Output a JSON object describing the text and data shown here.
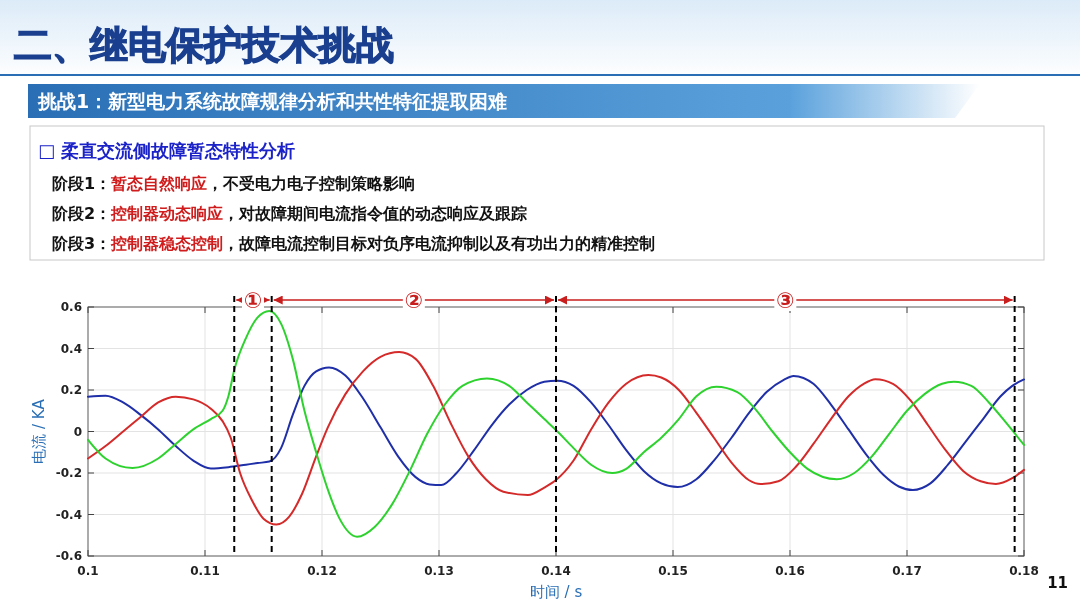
{
  "chart_data": {
    "type": "line",
    "title": "二、继电保护技术挑战",
    "subtitle": "挑战1：新型电力系统故障规律分析和共性特征提取困难",
    "xlabel": "时间 / s",
    "ylabel": "电流 / KA",
    "xlim": [
      0.1,
      0.18
    ],
    "xticks": [
      0.1,
      0.11,
      0.12,
      0.13,
      0.14,
      0.15,
      0.16,
      0.17,
      0.18
    ],
    "ylim": [
      -0.6,
      0.6
    ],
    "yticks": [
      -0.6,
      -0.4,
      -0.2,
      0,
      0.2,
      0.4,
      0.6
    ],
    "grid": true,
    "line_style": "solid",
    "marker": "none",
    "ref_lines": [
      {
        "axis": "x",
        "value": 0.1125,
        "color": "#000000",
        "line_style": "dashed"
      },
      {
        "axis": "x",
        "value": 0.1157,
        "color": "#000000",
        "line_style": "dashed"
      },
      {
        "axis": "x",
        "value": 0.14,
        "color": "#000000",
        "line_style": "dashed"
      },
      {
        "axis": "x",
        "value": 0.1792,
        "color": "#000000",
        "line_style": "dashed"
      }
    ],
    "annotations": [
      "□ 柔直交流侧故障暂态特性分析",
      "阶段1：",
      "暂态自然响应",
      "，不受电力电子控制策略影响",
      "阶段2：",
      "控制器动态响应",
      "，对故障期间电流指令值的动态响应及跟踪",
      "阶段3：",
      "控制器稳态控制",
      "，故障电流控制目标对负序电流抑制以及有功出力的精准控制",
      "①",
      "②",
      "③",
      "11"
    ],
    "series": [
      {
        "color": "#1f2fa8",
        "x": [
          0.1,
          0.1015,
          0.103,
          0.1045,
          0.106,
          0.1075,
          0.109,
          0.1105,
          0.112,
          0.1135,
          0.1145,
          0.1155,
          0.1165,
          0.1175,
          0.1185,
          0.1195,
          0.1206,
          0.122,
          0.1235,
          0.125,
          0.1265,
          0.128,
          0.1292,
          0.1302,
          0.1315,
          0.133,
          0.1345,
          0.136,
          0.1375,
          0.139,
          0.1401,
          0.1415,
          0.143,
          0.1445,
          0.146,
          0.1475,
          0.149,
          0.1504,
          0.152,
          0.1535,
          0.155,
          0.1565,
          0.158,
          0.1595,
          0.1603,
          0.162,
          0.1635,
          0.165,
          0.1665,
          0.168,
          0.1693,
          0.1705,
          0.172,
          0.1735,
          0.175,
          0.1765,
          0.178,
          0.179,
          0.18
        ],
        "values": [
          0.168,
          0.172,
          0.14,
          0.08,
          0.01,
          -0.07,
          -0.14,
          -0.178,
          -0.172,
          -0.16,
          -0.152,
          -0.145,
          -0.08,
          0.08,
          0.22,
          0.29,
          0.309,
          0.27,
          0.16,
          0.02,
          -0.12,
          -0.22,
          -0.255,
          -0.258,
          -0.2,
          -0.09,
          0.03,
          0.13,
          0.2,
          0.24,
          0.245,
          0.22,
          0.14,
          0.03,
          -0.09,
          -0.19,
          -0.25,
          -0.268,
          -0.23,
          -0.14,
          -0.03,
          0.09,
          0.19,
          0.25,
          0.268,
          0.23,
          0.13,
          0.01,
          -0.11,
          -0.21,
          -0.265,
          -0.282,
          -0.25,
          -0.16,
          -0.05,
          0.06,
          0.17,
          0.22,
          0.251
        ]
      },
      {
        "color": "#d42a2a",
        "x": [
          0.1,
          0.1015,
          0.103,
          0.1045,
          0.106,
          0.1075,
          0.109,
          0.1105,
          0.1115,
          0.1122,
          0.113,
          0.114,
          0.115,
          0.1161,
          0.1172,
          0.1183,
          0.1195,
          0.1205,
          0.122,
          0.1235,
          0.125,
          0.1266,
          0.128,
          0.1295,
          0.131,
          0.1325,
          0.134,
          0.1355,
          0.1376,
          0.139,
          0.14,
          0.1415,
          0.143,
          0.1445,
          0.146,
          0.1479,
          0.149,
          0.1505,
          0.152,
          0.1535,
          0.155,
          0.1565,
          0.1575,
          0.159,
          0.1605,
          0.162,
          0.1635,
          0.165,
          0.1663,
          0.1673,
          0.1688,
          0.1703,
          0.1718,
          0.1733,
          0.1748,
          0.1763,
          0.1776,
          0.179,
          0.18
        ],
        "values": [
          -0.13,
          -0.07,
          0.0,
          0.07,
          0.14,
          0.168,
          0.155,
          0.11,
          0.05,
          -0.03,
          -0.2,
          -0.33,
          -0.42,
          -0.448,
          -0.41,
          -0.3,
          -0.12,
          0.02,
          0.18,
          0.29,
          0.36,
          0.383,
          0.35,
          0.22,
          0.04,
          -0.12,
          -0.23,
          -0.29,
          -0.306,
          -0.27,
          -0.234,
          -0.14,
          0.01,
          0.14,
          0.23,
          0.272,
          0.26,
          0.2,
          0.09,
          -0.03,
          -0.15,
          -0.235,
          -0.253,
          -0.24,
          -0.17,
          -0.06,
          0.06,
          0.17,
          0.23,
          0.252,
          0.23,
          0.15,
          0.03,
          -0.09,
          -0.19,
          -0.24,
          -0.253,
          -0.225,
          -0.185
        ]
      },
      {
        "color": "#2ed22e",
        "x": [
          0.1,
          0.1015,
          0.1038,
          0.106,
          0.1075,
          0.109,
          0.1105,
          0.1115,
          0.112,
          0.1125,
          0.1135,
          0.1145,
          0.1155,
          0.1165,
          0.1175,
          0.1185,
          0.1195,
          0.1205,
          0.1215,
          0.123,
          0.1245,
          0.126,
          0.1275,
          0.129,
          0.1305,
          0.132,
          0.1341,
          0.136,
          0.1375,
          0.139,
          0.14,
          0.1415,
          0.143,
          0.1448,
          0.146,
          0.1475,
          0.149,
          0.1505,
          0.152,
          0.1537,
          0.1555,
          0.157,
          0.1585,
          0.16,
          0.1615,
          0.164,
          0.1655,
          0.167,
          0.1685,
          0.17,
          0.1715,
          0.173,
          0.174,
          0.1755,
          0.177,
          0.1785,
          0.18
        ],
        "values": [
          -0.04,
          -0.13,
          -0.176,
          -0.13,
          -0.06,
          0.01,
          0.06,
          0.1,
          0.17,
          0.296,
          0.45,
          0.55,
          0.581,
          0.52,
          0.35,
          0.1,
          -0.1,
          -0.28,
          -0.42,
          -0.507,
          -0.46,
          -0.35,
          -0.19,
          -0.01,
          0.13,
          0.22,
          0.256,
          0.22,
          0.14,
          0.06,
          0.007,
          -0.08,
          -0.16,
          -0.2,
          -0.18,
          -0.1,
          -0.03,
          0.06,
          0.17,
          0.216,
          0.19,
          0.11,
          0.0,
          -0.1,
          -0.18,
          -0.23,
          -0.2,
          -0.12,
          -0.01,
          0.1,
          0.18,
          0.23,
          0.24,
          0.22,
          0.14,
          0.04,
          -0.065
        ]
      }
    ]
  }
}
